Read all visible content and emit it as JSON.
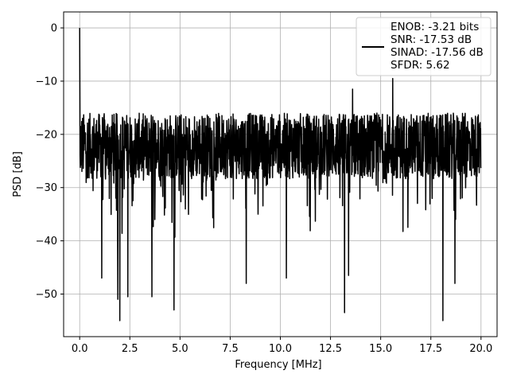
{
  "chart_data": {
    "type": "line",
    "xlabel": "Frequency [MHz]",
    "ylabel": "PSD [dB]",
    "xlim": [
      -0.8,
      20.8
    ],
    "ylim": [
      -58,
      3
    ],
    "x_ticks": [
      0.0,
      2.5,
      5.0,
      7.5,
      10.0,
      12.5,
      15.0,
      17.5,
      20.0
    ],
    "x_tick_labels": [
      "0.0",
      "2.5",
      "5.0",
      "7.5",
      "10.0",
      "12.5",
      "15.0",
      "17.5",
      "20.0"
    ],
    "y_ticks": [
      0,
      -10,
      -20,
      -30,
      -40,
      -50
    ],
    "y_tick_labels": [
      "0",
      "−10",
      "−20",
      "−30",
      "−40",
      "−50"
    ],
    "grid": true,
    "legend_position": "top-right",
    "legend_lines": [
      "ENOB: -3.21 bits",
      "SNR: -17.53 dB",
      "SINAD: -17.56 dB",
      "SFDR: 5.62"
    ],
    "series": [
      {
        "color": "#000000",
        "noise_floor_range": [
          -35,
          -16
        ],
        "x_range": [
          0.0,
          20.0
        ],
        "peaks": [
          {
            "x": 0.0,
            "y": 0.0
          },
          {
            "x": 15.6,
            "y": -9.5
          },
          {
            "x": 13.6,
            "y": -11.5
          },
          {
            "x": 2.0,
            "y": -55.0
          },
          {
            "x": 18.1,
            "y": -55.0
          },
          {
            "x": 13.2,
            "y": -53.5
          },
          {
            "x": 4.7,
            "y": -53.0
          },
          {
            "x": 1.9,
            "y": -51.0
          },
          {
            "x": 2.4,
            "y": -50.5
          },
          {
            "x": 3.6,
            "y": -50.5
          },
          {
            "x": 10.3,
            "y": -47.0
          },
          {
            "x": 8.3,
            "y": -48.0
          },
          {
            "x": 18.7,
            "y": -48.0
          },
          {
            "x": 1.1,
            "y": -47.0
          },
          {
            "x": 13.4,
            "y": -46.5
          }
        ]
      }
    ]
  }
}
